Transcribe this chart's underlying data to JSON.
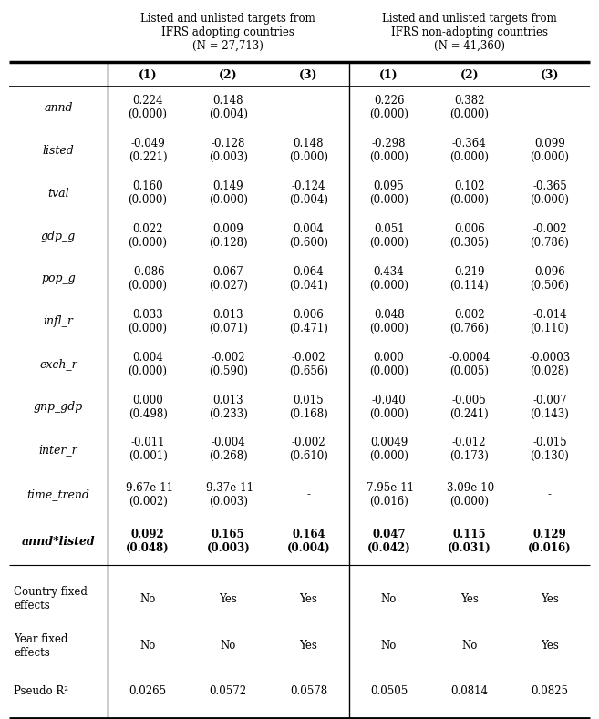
{
  "col_header_left": "Listed and unlisted targets from\nIFRS adopting countries\n(N = 27,713)",
  "col_header_right": "Listed and unlisted targets from\nIFRS non-adopting countries\n(N = 41,360)",
  "sub_headers": [
    "(1)",
    "(2)",
    "(3)",
    "(1)",
    "(2)",
    "(3)"
  ],
  "row_labels": [
    "annd",
    "listed",
    "tval",
    "gdp_g",
    "pop_g",
    "infl_r",
    "exch_r",
    "gnp_gdp",
    "inter_r",
    "time_trend",
    "annd*listed"
  ],
  "row_labels_bold": [
    false,
    false,
    false,
    false,
    false,
    false,
    false,
    false,
    false,
    false,
    true
  ],
  "data": [
    [
      "0.224\n(0.000)",
      "0.148\n(0.004)",
      "-",
      "0.226\n(0.000)",
      "0.382\n(0.000)",
      "-"
    ],
    [
      "-0.049\n(0.221)",
      "-0.128\n(0.003)",
      "0.148\n(0.000)",
      "-0.298\n(0.000)",
      "-0.364\n(0.000)",
      "0.099\n(0.000)"
    ],
    [
      "0.160\n(0.000)",
      "0.149\n(0.000)",
      "-0.124\n(0.004)",
      "0.095\n(0.000)",
      "0.102\n(0.000)",
      "-0.365\n(0.000)"
    ],
    [
      "0.022\n(0.000)",
      "0.009\n(0.128)",
      "0.004\n(0.600)",
      "0.051\n(0.000)",
      "0.006\n(0.305)",
      "-0.002\n(0.786)"
    ],
    [
      "-0.086\n(0.000)",
      "0.067\n(0.027)",
      "0.064\n(0.041)",
      "0.434\n(0.000)",
      "0.219\n(0.114)",
      "0.096\n(0.506)"
    ],
    [
      "0.033\n(0.000)",
      "0.013\n(0.071)",
      "0.006\n(0.471)",
      "0.048\n(0.000)",
      "0.002\n(0.766)",
      "-0.014\n(0.110)"
    ],
    [
      "0.004\n(0.000)",
      "-0.002\n(0.590)",
      "-0.002\n(0.656)",
      "0.000\n(0.000)",
      "-0.0004\n(0.005)",
      "-0.0003\n(0.028)"
    ],
    [
      "0.000\n(0.498)",
      "0.013\n(0.233)",
      "0.015\n(0.168)",
      "-0.040\n(0.000)",
      "-0.005\n(0.241)",
      "-0.007\n(0.143)"
    ],
    [
      "-0.011\n(0.001)",
      "-0.004\n(0.268)",
      "-0.002\n(0.610)",
      "0.0049\n(0.000)",
      "-0.012\n(0.173)",
      "-0.015\n(0.130)"
    ],
    [
      "-9.67e-11\n(0.002)",
      "-9.37e-11\n(0.003)",
      "-",
      "-7.95e-11\n(0.016)",
      "-3.09e-10\n(0.000)",
      "-"
    ],
    [
      "0.092\n(0.048)",
      "0.165\n(0.003)",
      "0.164\n(0.004)",
      "0.047\n(0.042)",
      "0.115\n(0.031)",
      "0.129\n(0.016)"
    ]
  ],
  "data_bold": [
    false,
    false,
    false,
    false,
    false,
    false,
    false,
    false,
    false,
    false,
    true
  ],
  "bottom_labels": [
    "Country fixed\neffects",
    "Year fixed\neffects",
    "Pseudo R²"
  ],
  "bottom_data": [
    [
      "No",
      "Yes",
      "Yes",
      "No",
      "Yes",
      "Yes"
    ],
    [
      "No",
      "No",
      "Yes",
      "No",
      "No",
      "Yes"
    ],
    [
      "0.0265",
      "0.0572",
      "0.0578",
      "0.0505",
      "0.0814",
      "0.0825"
    ]
  ],
  "bg_color": "#ffffff",
  "text_color": "#000000",
  "font_size_header": 8.5,
  "font_size_subheader": 9.0,
  "font_size_data": 8.5,
  "font_size_label": 9.0
}
